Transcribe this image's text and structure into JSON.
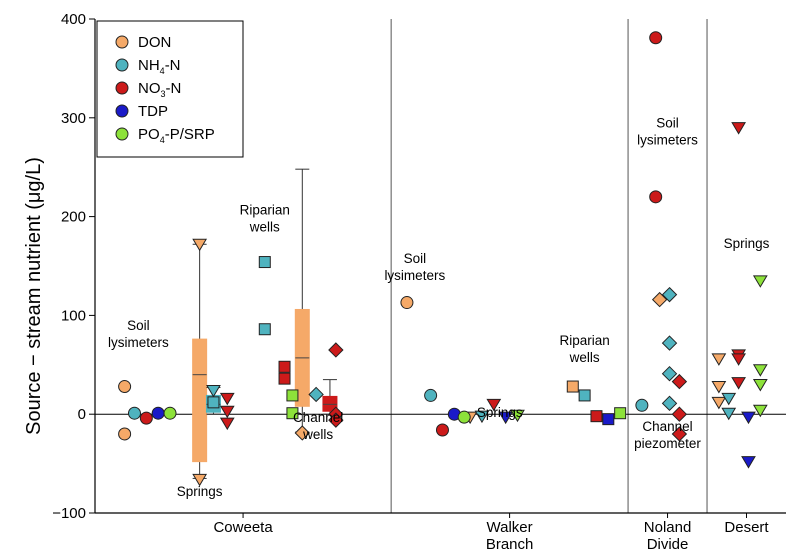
{
  "chart_data": {
    "type": "scatter",
    "ylabel": "Source − stream nutrient (μg/L)",
    "ylim": [
      -100,
      400
    ],
    "yticks": [
      -100,
      0,
      100,
      200,
      300,
      400
    ],
    "ytick_labels": [
      "−100",
      "0",
      "100",
      "200",
      "300",
      "400"
    ],
    "groups": [
      {
        "label": "Coweeta",
        "range": [
          0,
          15
        ]
      },
      {
        "label": "Walker\nBranch",
        "range": [
          15,
          27
        ]
      },
      {
        "label": "Noland\nDivide",
        "range": [
          27,
          31
        ]
      },
      {
        "label": "Desert",
        "range": [
          31,
          35
        ]
      }
    ],
    "legend": [
      {
        "name": "DON",
        "main": "DON",
        "sub": "",
        "tail": "",
        "color": "#f5a968"
      },
      {
        "name": "NH4-N",
        "main": "NH",
        "sub": "4",
        "tail": "-N",
        "color": "#4fb3bf"
      },
      {
        "name": "NO3-N",
        "main": "NO",
        "sub": "3",
        "tail": "-N",
        "color": "#cc1a1a"
      },
      {
        "name": "TDP",
        "main": "TDP",
        "sub": "",
        "tail": "",
        "color": "#1a1ac8"
      },
      {
        "name": "PO4-P/SRP",
        "main": "PO",
        "sub": "4",
        "tail": "-P/SRP",
        "color": "#8de23a"
      }
    ],
    "annotations": [
      {
        "lines": [
          "Soil",
          "lysimeters"
        ],
        "x": 2.2,
        "y": 85
      },
      {
        "lines": [
          "Springs"
        ],
        "x": 5.3,
        "y": -83
      },
      {
        "lines": [
          "Riparian",
          "wells"
        ],
        "x": 8.6,
        "y": 202
      },
      {
        "lines": [
          "Channel",
          "wells"
        ],
        "x": 11.3,
        "y": -8
      },
      {
        "lines": [
          "Soil",
          "lysimeters"
        ],
        "x": 16.2,
        "y": 153
      },
      {
        "lines": [
          "Springs"
        ],
        "x": 20.5,
        "y": -3
      },
      {
        "lines": [
          "Riparian",
          "wells"
        ],
        "x": 24.8,
        "y": 70
      },
      {
        "lines": [
          "Soil",
          "lysimeters"
        ],
        "x": 29.0,
        "y": 290
      },
      {
        "lines": [
          "Channel",
          "piezometer"
        ],
        "x": 29.0,
        "y": -17
      },
      {
        "lines": [
          "Springs"
        ],
        "x": 33.0,
        "y": 168
      }
    ],
    "boxplots": [
      {
        "series": "DON",
        "x": 5.3,
        "q1": -48,
        "median": 40,
        "q3": 76,
        "whisker_low": -65,
        "whisker_high": 172
      },
      {
        "series": "NH4-N",
        "x": 6.0,
        "q1": 2,
        "median": 10,
        "q3": 19,
        "whisker_low": 0,
        "whisker_high": 27
      },
      {
        "series": "DON",
        "x": 10.5,
        "q1": 8,
        "median": 57,
        "q3": 106,
        "whisker_low": -18,
        "whisker_high": 248
      },
      {
        "series": "NO3-N",
        "x": 11.9,
        "q1": 3,
        "median": 10,
        "q3": 18,
        "whisker_low": 0,
        "whisker_high": 35
      }
    ],
    "series": [
      {
        "name": "DON",
        "points": [
          {
            "x": 1.5,
            "y": 28,
            "shape": "circle"
          },
          {
            "x": 1.5,
            "y": -20,
            "shape": "circle"
          },
          {
            "x": 5.3,
            "y": 172,
            "shape": "tri-down"
          },
          {
            "x": 5.3,
            "y": -66,
            "shape": "tri-down"
          },
          {
            "x": 10.5,
            "y": -19,
            "shape": "diamond"
          },
          {
            "x": 15.8,
            "y": 113,
            "shape": "circle"
          },
          {
            "x": 19.0,
            "y": -3,
            "shape": "tri-down"
          },
          {
            "x": 24.2,
            "y": 28,
            "shape": "square"
          },
          {
            "x": 28.6,
            "y": 116,
            "shape": "diamond"
          },
          {
            "x": 31.6,
            "y": 56,
            "shape": "tri-down"
          },
          {
            "x": 31.6,
            "y": 28,
            "shape": "tri-down"
          },
          {
            "x": 31.6,
            "y": 12,
            "shape": "tri-down"
          }
        ]
      },
      {
        "name": "NH4-N",
        "points": [
          {
            "x": 2.0,
            "y": 1,
            "shape": "circle"
          },
          {
            "x": 6.0,
            "y": 24,
            "shape": "tri-down"
          },
          {
            "x": 6.0,
            "y": 12,
            "shape": "square"
          },
          {
            "x": 8.6,
            "y": 154,
            "shape": "square"
          },
          {
            "x": 8.6,
            "y": 86,
            "shape": "square"
          },
          {
            "x": 11.2,
            "y": 20,
            "shape": "diamond"
          },
          {
            "x": 17.0,
            "y": 19,
            "shape": "circle"
          },
          {
            "x": 19.6,
            "y": -2,
            "shape": "tri-down"
          },
          {
            "x": 24.8,
            "y": 19,
            "shape": "square"
          },
          {
            "x": 27.7,
            "y": 9,
            "shape": "circle"
          },
          {
            "x": 29.1,
            "y": 121,
            "shape": "diamond"
          },
          {
            "x": 29.1,
            "y": 72,
            "shape": "diamond"
          },
          {
            "x": 29.1,
            "y": 41,
            "shape": "diamond"
          },
          {
            "x": 29.1,
            "y": 11,
            "shape": "diamond"
          },
          {
            "x": 32.1,
            "y": 16,
            "shape": "tri-down"
          },
          {
            "x": 32.1,
            "y": 1,
            "shape": "tri-down"
          }
        ]
      },
      {
        "name": "NO3-N",
        "points": [
          {
            "x": 2.6,
            "y": -4,
            "shape": "circle"
          },
          {
            "x": 6.7,
            "y": 16,
            "shape": "tri-down"
          },
          {
            "x": 6.7,
            "y": 3,
            "shape": "tri-down"
          },
          {
            "x": 6.7,
            "y": -9,
            "shape": "tri-down"
          },
          {
            "x": 9.6,
            "y": 48,
            "shape": "square"
          },
          {
            "x": 9.6,
            "y": 36,
            "shape": "square"
          },
          {
            "x": 12.2,
            "y": 65,
            "shape": "diamond"
          },
          {
            "x": 12.2,
            "y": 0,
            "shape": "diamond"
          },
          {
            "x": 12.2,
            "y": -6,
            "shape": "diamond"
          },
          {
            "x": 17.6,
            "y": -16,
            "shape": "circle"
          },
          {
            "x": 20.2,
            "y": 10,
            "shape": "tri-down"
          },
          {
            "x": 25.4,
            "y": -2,
            "shape": "square"
          },
          {
            "x": 28.4,
            "y": 381,
            "shape": "circle"
          },
          {
            "x": 28.4,
            "y": 220,
            "shape": "circle"
          },
          {
            "x": 29.6,
            "y": 33,
            "shape": "diamond"
          },
          {
            "x": 29.6,
            "y": 0,
            "shape": "diamond"
          },
          {
            "x": 29.6,
            "y": -20,
            "shape": "diamond"
          },
          {
            "x": 32.6,
            "y": 290,
            "shape": "tri-down"
          },
          {
            "x": 32.6,
            "y": 60,
            "shape": "tri-down"
          },
          {
            "x": 32.6,
            "y": 56,
            "shape": "tri-down"
          },
          {
            "x": 32.6,
            "y": 32,
            "shape": "tri-down"
          }
        ]
      },
      {
        "name": "TDP",
        "points": [
          {
            "x": 3.2,
            "y": 1,
            "shape": "circle"
          },
          {
            "x": 18.2,
            "y": 0,
            "shape": "circle"
          },
          {
            "x": 20.8,
            "y": -3,
            "shape": "tri-down"
          },
          {
            "x": 26.0,
            "y": -5,
            "shape": "square"
          },
          {
            "x": 33.1,
            "y": -3,
            "shape": "tri-down"
          },
          {
            "x": 33.1,
            "y": -48,
            "shape": "tri-down"
          }
        ]
      },
      {
        "name": "PO4-P/SRP",
        "points": [
          {
            "x": 3.8,
            "y": 1,
            "shape": "circle"
          },
          {
            "x": 10.0,
            "y": 19,
            "shape": "square"
          },
          {
            "x": 10.0,
            "y": 1,
            "shape": "square"
          },
          {
            "x": 18.7,
            "y": -3,
            "shape": "circle"
          },
          {
            "x": 21.4,
            "y": -1,
            "shape": "tri-down"
          },
          {
            "x": 26.6,
            "y": 1,
            "shape": "square"
          },
          {
            "x": 33.7,
            "y": 135,
            "shape": "tri-down"
          },
          {
            "x": 33.7,
            "y": 45,
            "shape": "tri-down"
          },
          {
            "x": 33.7,
            "y": 30,
            "shape": "tri-down"
          },
          {
            "x": 33.7,
            "y": 4,
            "shape": "tri-down"
          }
        ]
      }
    ]
  }
}
